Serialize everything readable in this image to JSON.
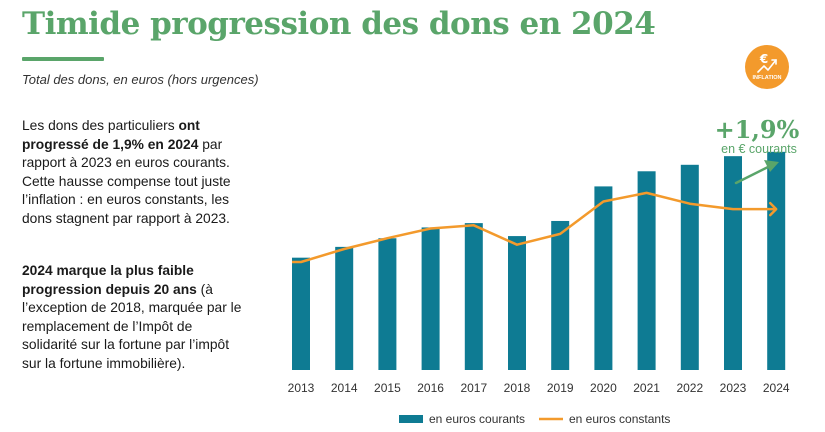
{
  "header": {
    "title": "Timide progression des dons en 2024",
    "subtitle": "Total des dons, en euros (hors urgences)"
  },
  "text": {
    "p1": [
      {
        "t": "Les dons des particuliers ",
        "b": false
      },
      {
        "t": "ont progressé de 1,9% en 2024",
        "b": true
      },
      {
        "t": " par rapport à 2023 en euros courants. Cette hausse compense tout juste l’inflation : en euros constants, les dons stagnent par rapport à 2023.",
        "b": false
      }
    ],
    "p2": [
      {
        "t": "2024 marque la plus faible progression depuis 20 ans",
        "b": true
      },
      {
        "t": " (à l’exception de 2018, marquée par le remplacement de l’Impôt de solidarité sur la fortune par l’impôt sur la fortune immobilière).",
        "b": false
      }
    ]
  },
  "annotation": {
    "value": "+1,9%",
    "label": "en € courants",
    "badge_symbol": "€",
    "badge_text": "INFLATION",
    "badge_icon": "trend-up-icon"
  },
  "colors": {
    "bars": "#0e7b93",
    "line": "#f39a2c",
    "accent": "#5aa56a",
    "badge": "#f39a2c"
  },
  "chart_data": {
    "type": "bar",
    "categories": [
      "2013",
      "2014",
      "2015",
      "2016",
      "2017",
      "2018",
      "2019",
      "2020",
      "2021",
      "2022",
      "2023",
      "2024"
    ],
    "ylim": [
      0,
      100
    ],
    "series": [
      {
        "name": "en euros courants",
        "type": "bar",
        "values": [
          52,
          57,
          61,
          66,
          68,
          62,
          69,
          85,
          92,
          95,
          99,
          101
        ]
      },
      {
        "name": "en euros constants",
        "type": "line",
        "values": [
          50,
          56,
          61,
          65.5,
          67,
          58,
          63,
          78,
          82,
          77,
          74.5,
          74.5
        ]
      }
    ],
    "legend": [
      "en euros courants",
      "en euros constants"
    ],
    "legend_position": "bottom",
    "grid": false
  }
}
